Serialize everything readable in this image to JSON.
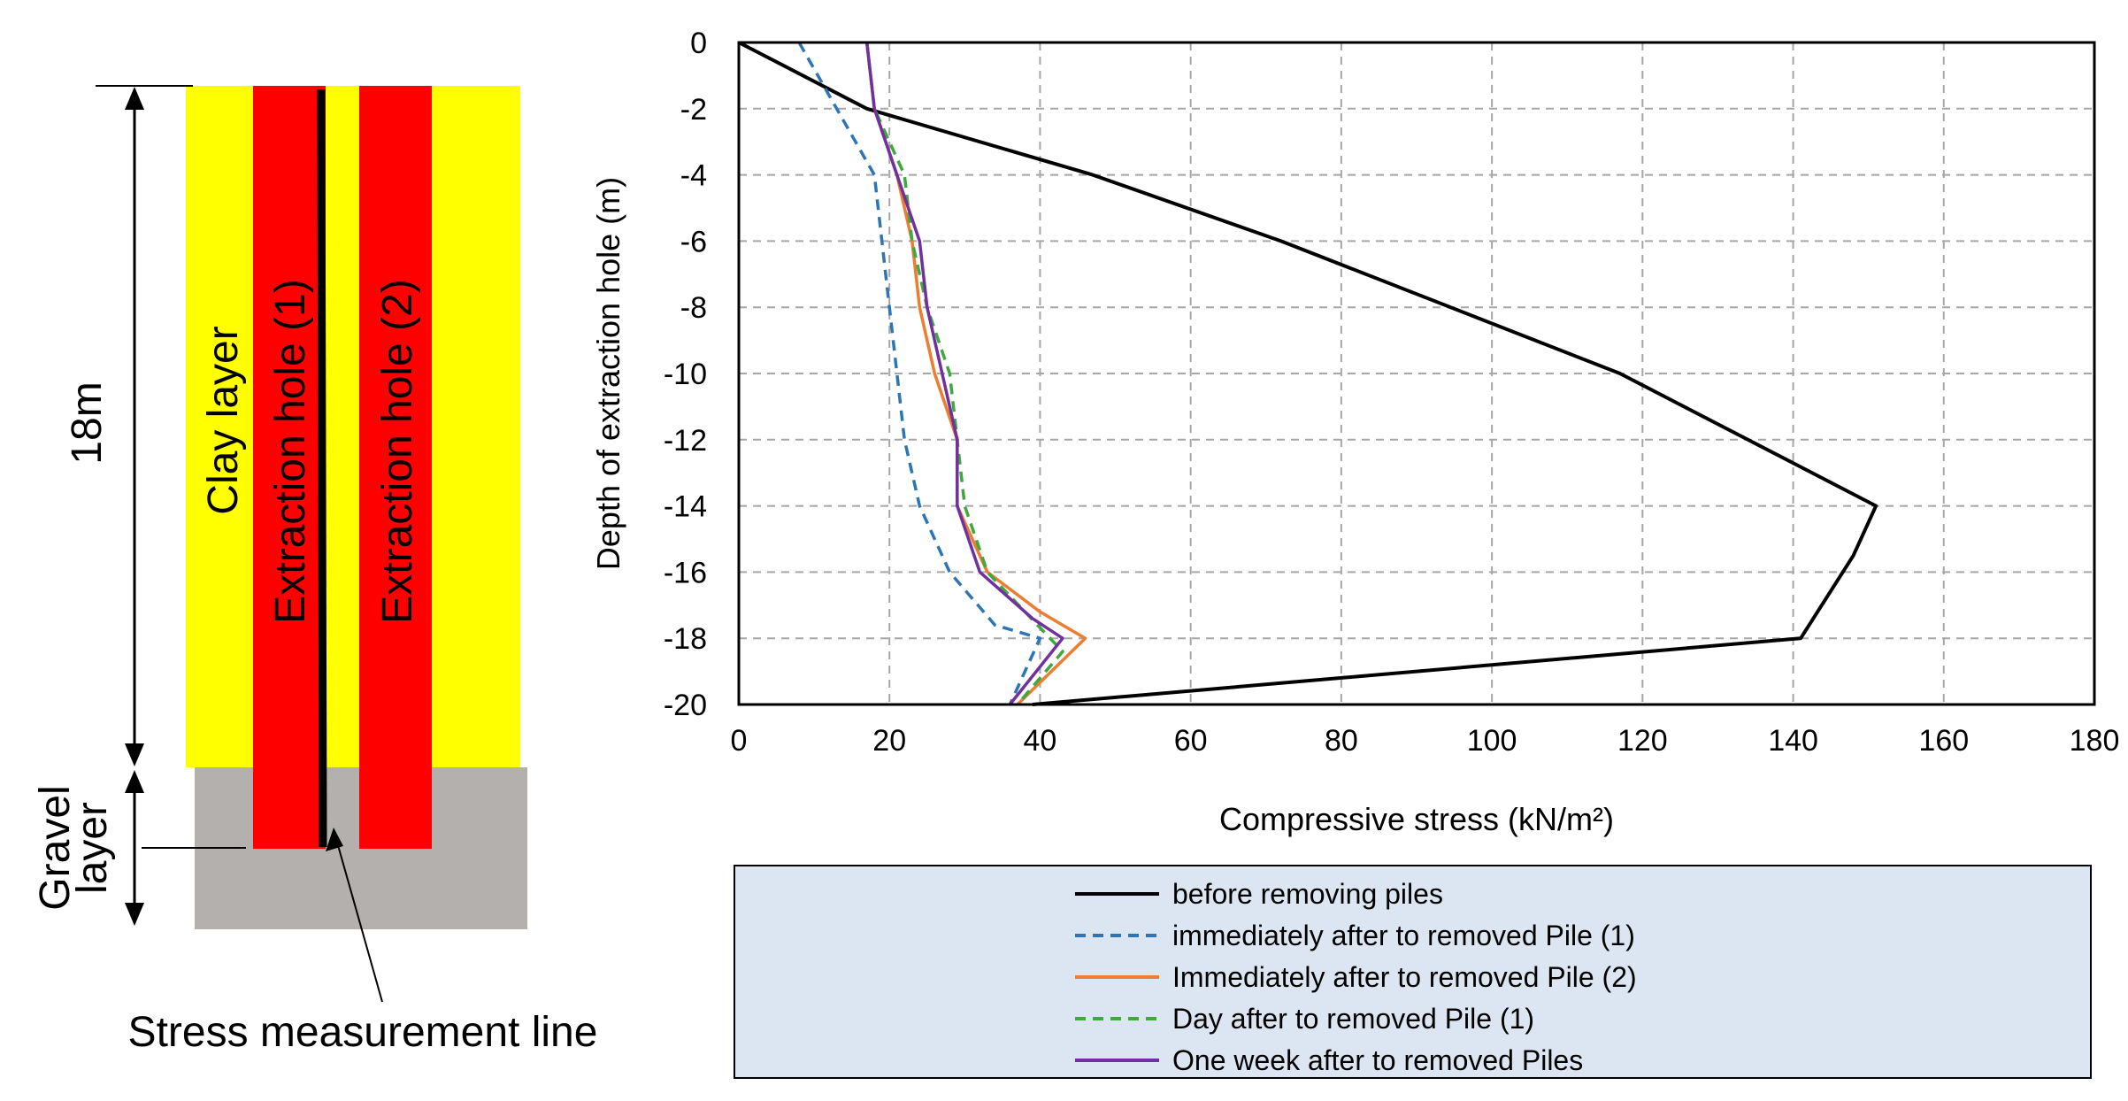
{
  "diagram": {
    "clay_label": "Clay layer",
    "gravel_label_line1": "Gravel",
    "gravel_label_line2": "layer",
    "hole1_label": "Extraction hole (1)",
    "hole2_label": "Extraction hole (2)",
    "depth_label": "18m",
    "stress_line_label": "Stress measurement line",
    "colors": {
      "clay": "#ffff00",
      "gravel": "#b4b0ae",
      "hole": "#ff0000",
      "line": "#000000"
    }
  },
  "chart_data": {
    "type": "line",
    "xlabel": "Compressive stress (kN/m²)",
    "ylabel": "Depth of extraction hole (m)",
    "xlim": [
      0,
      180
    ],
    "ylim": [
      -20,
      0
    ],
    "xticks": [
      0,
      20,
      40,
      60,
      80,
      100,
      120,
      140,
      160,
      180
    ],
    "yticks": [
      0,
      -2,
      -4,
      -6,
      -8,
      -10,
      -12,
      -14,
      -16,
      -18,
      -20
    ],
    "grid": true,
    "legend_position": "bottom",
    "series": [
      {
        "name": "before removing piles",
        "color": "#000000",
        "dash": "solid",
        "x": [
          0,
          17,
          47,
          72,
          117,
          151,
          148,
          141,
          39
        ],
        "y": [
          0,
          -2,
          -4,
          -6,
          -10,
          -14,
          -15.5,
          -18,
          -20
        ]
      },
      {
        "name": "immediately after to removed Pile (1)",
        "color": "#2e75b6",
        "dash": "dashed",
        "x": [
          8,
          13,
          18,
          19,
          20,
          21,
          22,
          24,
          28,
          34,
          40,
          38,
          36
        ],
        "y": [
          0,
          -2,
          -4,
          -6,
          -8,
          -10,
          -12,
          -14,
          -16,
          -17.6,
          -18,
          -19,
          -20
        ]
      },
      {
        "name": "Immediately after to removed Pile (2)",
        "color": "#ed7d31",
        "dash": "solid",
        "x": [
          17,
          18,
          21,
          23,
          24,
          26,
          29,
          29,
          33,
          40,
          46,
          37
        ],
        "y": [
          0,
          -2,
          -4,
          -6,
          -8,
          -10,
          -12,
          -14,
          -16,
          -17.2,
          -18,
          -20
        ]
      },
      {
        "name": "Day after to removed Pile (1)",
        "color": "#3fa83f",
        "dash": "dashed",
        "x": [
          17,
          18,
          22,
          23,
          25,
          28,
          29,
          30,
          33,
          38,
          43,
          37
        ],
        "y": [
          0,
          -2,
          -4,
          -6,
          -8,
          -10,
          -12,
          -14,
          -16,
          -17.2,
          -18.4,
          -20
        ]
      },
      {
        "name": "One week after to removed Piles",
        "color": "#7030a0",
        "dash": "solid",
        "x": [
          17,
          18,
          21,
          24,
          25,
          27,
          29,
          29,
          32,
          39,
          43,
          36
        ],
        "y": [
          0,
          -2,
          -4,
          -6,
          -8,
          -10,
          -12,
          -14,
          -16,
          -17.4,
          -18,
          -20
        ]
      }
    ]
  }
}
